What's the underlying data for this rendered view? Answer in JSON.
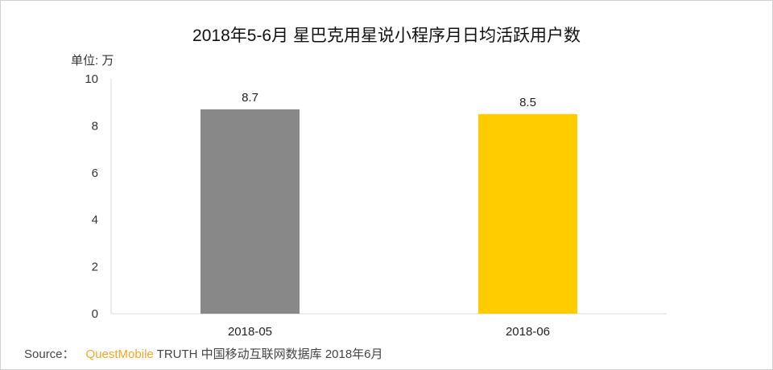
{
  "chart_data": {
    "type": "bar",
    "title": "2018年5-6月 星巴克用星说小程序月日均活跃用户数",
    "unit_label": "单位: 万",
    "categories": [
      "2018-05",
      "2018-06"
    ],
    "values": [
      8.7,
      8.5
    ],
    "data_labels": [
      "8.7",
      "8.5"
    ],
    "colors": [
      "#888888",
      "#ffcc00"
    ],
    "yticks": [
      0,
      2,
      4,
      6,
      8,
      10
    ],
    "ylim": [
      0,
      10
    ],
    "xlabel": "",
    "ylabel": "",
    "grid": false
  },
  "source": {
    "prefix": "Source：",
    "brand": "QuestMobile",
    "rest": "TRUTH 中国移动互联网数据库 2018年6月"
  }
}
